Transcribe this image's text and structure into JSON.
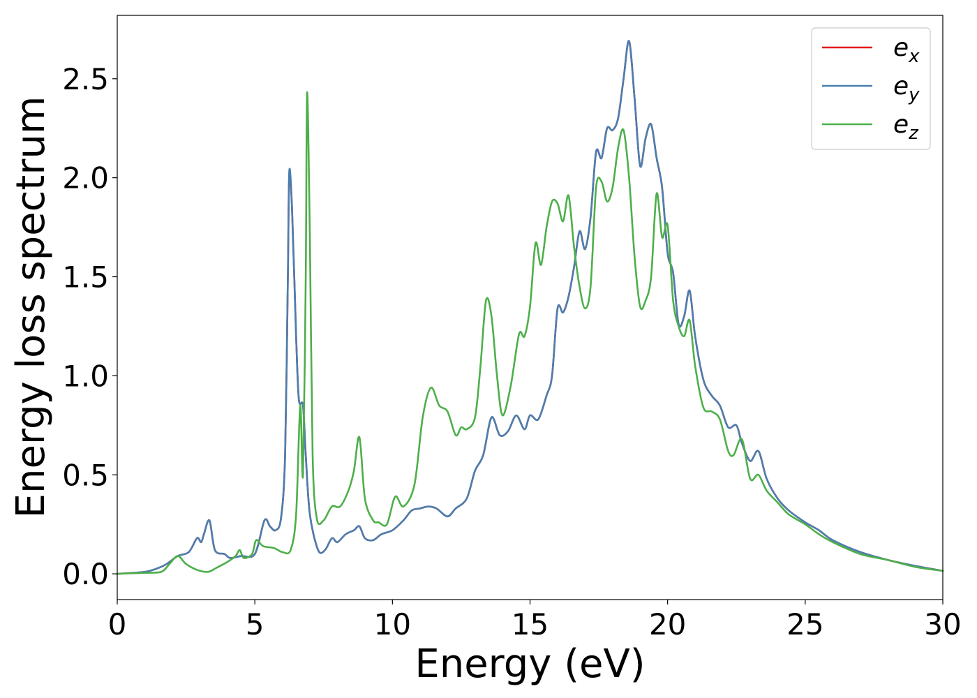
{
  "chart_data": {
    "type": "line",
    "xlabel": "Energy (eV)",
    "ylabel": "Energy loss spectrum",
    "xlim": [
      0,
      30
    ],
    "ylim": [
      -0.13,
      2.82
    ],
    "xticks": [
      0,
      5,
      10,
      15,
      20,
      25,
      30
    ],
    "yticks": [
      0.0,
      0.5,
      1.0,
      1.5,
      2.0,
      2.5
    ],
    "xtick_labels": [
      "0",
      "5",
      "10",
      "15",
      "20",
      "25",
      "30"
    ],
    "ytick_labels": [
      "0.0",
      "0.5",
      "1.0",
      "1.5",
      "2.0",
      "2.5"
    ],
    "grid": false,
    "legend_position": "top-right",
    "series": [
      {
        "name": "e_x",
        "label_base": "e",
        "label_sub": "x",
        "color": "#e41a1c",
        "x": [
          0,
          1,
          1.5,
          1.8,
          2.2,
          2.6,
          2.9,
          3.05,
          3.15,
          3.35,
          3.55,
          3.9,
          4.1,
          4.5,
          5.0,
          5.35,
          5.55,
          5.75,
          5.95,
          6.1,
          6.2,
          6.25,
          6.35,
          6.5,
          6.6,
          6.75,
          6.85,
          7.0,
          7.3,
          7.55,
          7.8,
          8.0,
          8.3,
          8.6,
          8.8,
          9.0,
          9.3,
          9.6,
          10.0,
          10.4,
          10.7,
          11.0,
          11.3,
          11.6,
          12.0,
          12.3,
          12.7,
          13.0,
          13.3,
          13.6,
          13.9,
          14.2,
          14.5,
          14.8,
          15.0,
          15.3,
          15.6,
          15.8,
          16.0,
          16.2,
          16.4,
          16.6,
          16.8,
          17.0,
          17.2,
          17.4,
          17.6,
          17.8,
          18.0,
          18.2,
          18.4,
          18.6,
          18.8,
          19.0,
          19.2,
          19.4,
          19.6,
          19.8,
          20.0,
          20.2,
          20.4,
          20.6,
          20.8,
          21.0,
          21.3,
          21.6,
          21.9,
          22.2,
          22.5,
          22.7,
          23.0,
          23.3,
          23.6,
          24.0,
          24.4,
          25.0,
          25.5,
          26.0,
          27.0,
          28.0,
          29.0,
          30.0
        ],
        "values": [
          0.0,
          0.01,
          0.03,
          0.05,
          0.09,
          0.11,
          0.18,
          0.16,
          0.2,
          0.27,
          0.12,
          0.1,
          0.08,
          0.09,
          0.1,
          0.27,
          0.24,
          0.22,
          0.28,
          0.6,
          1.5,
          2.0,
          1.85,
          1.2,
          0.88,
          0.85,
          0.6,
          0.3,
          0.12,
          0.12,
          0.18,
          0.16,
          0.2,
          0.22,
          0.24,
          0.18,
          0.17,
          0.2,
          0.22,
          0.27,
          0.32,
          0.33,
          0.34,
          0.33,
          0.29,
          0.33,
          0.38,
          0.52,
          0.6,
          0.79,
          0.7,
          0.72,
          0.8,
          0.73,
          0.8,
          0.78,
          0.9,
          1.0,
          1.34,
          1.32,
          1.4,
          1.55,
          1.73,
          1.64,
          1.8,
          2.13,
          2.1,
          2.25,
          2.24,
          2.3,
          2.5,
          2.69,
          2.4,
          2.06,
          2.2,
          2.27,
          2.1,
          1.95,
          1.62,
          1.52,
          1.26,
          1.3,
          1.43,
          1.2,
          0.98,
          0.9,
          0.85,
          0.74,
          0.75,
          0.66,
          0.57,
          0.62,
          0.48,
          0.38,
          0.32,
          0.26,
          0.22,
          0.17,
          0.11,
          0.07,
          0.04,
          0.015
        ]
      },
      {
        "name": "e_y",
        "label_base": "e",
        "label_sub": "y",
        "color": "#4a7fb0",
        "x": [
          0,
          1,
          1.5,
          1.8,
          2.2,
          2.6,
          2.9,
          3.05,
          3.15,
          3.35,
          3.55,
          3.9,
          4.1,
          4.5,
          5.0,
          5.35,
          5.55,
          5.75,
          5.95,
          6.1,
          6.2,
          6.25,
          6.35,
          6.5,
          6.6,
          6.75,
          6.85,
          7.0,
          7.3,
          7.55,
          7.8,
          8.0,
          8.3,
          8.6,
          8.8,
          9.0,
          9.3,
          9.6,
          10.0,
          10.4,
          10.7,
          11.0,
          11.3,
          11.6,
          12.0,
          12.3,
          12.7,
          13.0,
          13.3,
          13.6,
          13.9,
          14.2,
          14.5,
          14.8,
          15.0,
          15.3,
          15.6,
          15.8,
          16.0,
          16.2,
          16.4,
          16.6,
          16.8,
          17.0,
          17.2,
          17.4,
          17.6,
          17.8,
          18.0,
          18.2,
          18.4,
          18.6,
          18.8,
          19.0,
          19.2,
          19.4,
          19.6,
          19.8,
          20.0,
          20.2,
          20.4,
          20.6,
          20.8,
          21.0,
          21.3,
          21.6,
          21.9,
          22.2,
          22.5,
          22.7,
          23.0,
          23.3,
          23.6,
          24.0,
          24.4,
          25.0,
          25.5,
          26.0,
          27.0,
          28.0,
          29.0,
          30.0
        ],
        "values": [
          0.0,
          0.01,
          0.03,
          0.05,
          0.09,
          0.11,
          0.18,
          0.16,
          0.2,
          0.27,
          0.12,
          0.1,
          0.08,
          0.09,
          0.1,
          0.27,
          0.24,
          0.22,
          0.28,
          0.6,
          1.5,
          2.03,
          1.85,
          1.2,
          0.88,
          0.85,
          0.6,
          0.3,
          0.12,
          0.12,
          0.18,
          0.16,
          0.2,
          0.22,
          0.24,
          0.18,
          0.17,
          0.2,
          0.22,
          0.27,
          0.32,
          0.33,
          0.34,
          0.33,
          0.29,
          0.33,
          0.38,
          0.52,
          0.6,
          0.79,
          0.7,
          0.72,
          0.8,
          0.73,
          0.8,
          0.78,
          0.9,
          1.0,
          1.34,
          1.32,
          1.4,
          1.55,
          1.73,
          1.64,
          1.8,
          2.13,
          2.1,
          2.25,
          2.24,
          2.3,
          2.5,
          2.69,
          2.4,
          2.06,
          2.2,
          2.27,
          2.1,
          1.95,
          1.62,
          1.52,
          1.26,
          1.3,
          1.43,
          1.2,
          0.98,
          0.9,
          0.85,
          0.74,
          0.75,
          0.66,
          0.57,
          0.62,
          0.48,
          0.38,
          0.32,
          0.26,
          0.22,
          0.17,
          0.11,
          0.07,
          0.04,
          0.015
        ]
      },
      {
        "name": "e_z",
        "label_base": "e",
        "label_sub": "z",
        "color": "#4daf4a",
        "x": [
          0,
          1,
          1.6,
          1.9,
          2.2,
          2.5,
          2.9,
          3.3,
          3.6,
          4.0,
          4.3,
          4.45,
          4.6,
          4.9,
          5.05,
          5.3,
          5.7,
          6.0,
          6.3,
          6.5,
          6.65,
          6.75,
          6.85,
          6.9,
          7.0,
          7.1,
          7.25,
          7.5,
          7.8,
          8.1,
          8.4,
          8.6,
          8.8,
          9.0,
          9.3,
          9.5,
          9.8,
          10.1,
          10.4,
          10.8,
          11.1,
          11.4,
          11.7,
          12.0,
          12.3,
          12.5,
          12.7,
          13.0,
          13.2,
          13.4,
          13.6,
          13.8,
          14.0,
          14.3,
          14.6,
          14.8,
          15.0,
          15.2,
          15.4,
          15.6,
          15.8,
          16.0,
          16.2,
          16.4,
          16.6,
          16.8,
          17.0,
          17.2,
          17.4,
          17.6,
          17.8,
          18.0,
          18.2,
          18.4,
          18.6,
          18.8,
          19.0,
          19.2,
          19.4,
          19.6,
          19.8,
          20.0,
          20.2,
          20.4,
          20.6,
          20.8,
          21.0,
          21.3,
          21.6,
          21.9,
          22.2,
          22.4,
          22.7,
          23.0,
          23.3,
          23.6,
          24.0,
          24.4,
          25.0,
          25.5,
          26.0,
          27.0,
          28.0,
          29.0,
          30.0
        ],
        "values": [
          0.0,
          0.005,
          0.01,
          0.05,
          0.09,
          0.05,
          0.02,
          0.01,
          0.03,
          0.06,
          0.09,
          0.12,
          0.08,
          0.1,
          0.17,
          0.14,
          0.13,
          0.11,
          0.12,
          0.3,
          0.85,
          0.5,
          1.5,
          2.43,
          1.7,
          0.6,
          0.28,
          0.27,
          0.34,
          0.34,
          0.42,
          0.52,
          0.69,
          0.38,
          0.27,
          0.26,
          0.25,
          0.39,
          0.34,
          0.45,
          0.79,
          0.94,
          0.85,
          0.82,
          0.7,
          0.74,
          0.73,
          0.79,
          1.05,
          1.38,
          1.3,
          1.0,
          0.8,
          0.95,
          1.21,
          1.2,
          1.35,
          1.67,
          1.56,
          1.75,
          1.88,
          1.87,
          1.78,
          1.91,
          1.65,
          1.45,
          1.34,
          1.45,
          1.95,
          1.98,
          1.88,
          1.95,
          2.15,
          2.24,
          2.0,
          1.6,
          1.35,
          1.38,
          1.5,
          1.92,
          1.7,
          1.76,
          1.38,
          1.25,
          1.2,
          1.28,
          1.05,
          0.84,
          0.82,
          0.78,
          0.62,
          0.6,
          0.68,
          0.48,
          0.5,
          0.42,
          0.36,
          0.3,
          0.25,
          0.2,
          0.16,
          0.1,
          0.07,
          0.035,
          0.015
        ]
      }
    ]
  }
}
